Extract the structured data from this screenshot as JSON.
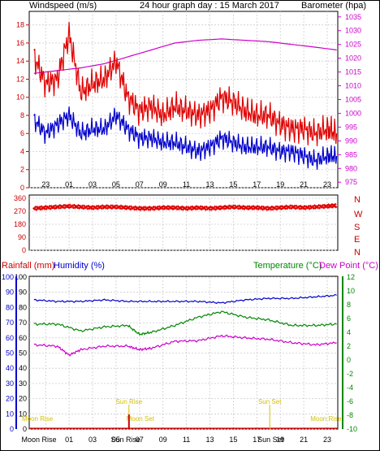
{
  "header": {
    "left_label": "Windspeed (m/s)",
    "title": "24 hour graph day : 15 March 2017",
    "right_label": "Barometer (hpa)"
  },
  "bottom_header": {
    "rainfall_label": "Rainfall (mm)",
    "humidity_label": "Humidity (%)",
    "temperature_label": "Temperature (°C)",
    "dewpoint_label": "Dew Point (°C)"
  },
  "colors": {
    "wind_gust": "#e00000",
    "wind_avg": "#0000cc",
    "barometer": "#cc00cc",
    "direction": "#e00000",
    "humidity": "#0000cc",
    "dewpoint": "#cc00cc",
    "temperature": "#008800",
    "rain_axis": "#0000cc",
    "temp_axis": "#008800",
    "sun": "#d4c000",
    "moon": "#d4c000",
    "rainfall": "#e00000"
  },
  "x_ticks": [
    "23",
    "01",
    "03",
    "05",
    "07",
    "09",
    "11",
    "13",
    "15",
    "17",
    "19",
    "21",
    "23"
  ],
  "chart_data": [
    {
      "type": "line",
      "x_unit": "hour",
      "y_left_label": "Windspeed (m/s)",
      "y_right_label": "Barometer (hpa)",
      "y_left_ticks": [
        "0",
        "2",
        "4",
        "6",
        "8",
        "10",
        "12",
        "14",
        "16",
        "18"
      ],
      "y_right_ticks": [
        "975",
        "980",
        "985",
        "990",
        "995",
        "1000",
        "1005",
        "1010",
        "1015",
        "1020",
        "1025",
        "1030",
        "1035"
      ],
      "ylim_left": [
        0,
        19.5
      ],
      "ylim_right": [
        973,
        1037
      ],
      "series": [
        {
          "name": "Wind gust",
          "axis": "left",
          "x": [
            22,
            23,
            0,
            1,
            2,
            3,
            4,
            5,
            6,
            7,
            8,
            9,
            10,
            11,
            12,
            13,
            14,
            15,
            16,
            17,
            18,
            19,
            20,
            21,
            22,
            23,
            23.8
          ],
          "values": [
            14.5,
            11.5,
            12,
            17,
            10.5,
            11.5,
            12,
            14,
            10,
            8.5,
            9,
            8,
            9,
            8.5,
            8,
            8.5,
            10,
            9.5,
            8.5,
            8,
            8,
            7,
            6.5,
            6.5,
            6,
            6.5,
            6
          ]
        },
        {
          "name": "Wind average",
          "axis": "left",
          "x": [
            22,
            23,
            0,
            1,
            2,
            3,
            4,
            5,
            6,
            7,
            8,
            9,
            10,
            11,
            12,
            13,
            14,
            15,
            16,
            17,
            18,
            19,
            20,
            21,
            22,
            23,
            23.8
          ],
          "values": [
            7.5,
            6,
            7,
            8,
            6,
            6.5,
            6.5,
            8,
            6.5,
            5.5,
            5.5,
            5,
            5,
            4.5,
            4,
            4.5,
            5.5,
            5,
            4.5,
            4.5,
            4.5,
            4,
            4,
            3.5,
            3,
            3.5,
            3.5
          ]
        },
        {
          "name": "Barometer",
          "axis": "right",
          "x": [
            22,
            0,
            2,
            4,
            6,
            8,
            10,
            12,
            14,
            16,
            18,
            20,
            22,
            23.8
          ],
          "values": [
            1014.5,
            1015.5,
            1016.5,
            1018,
            1020.5,
            1023,
            1025.5,
            1026.5,
            1027,
            1026.5,
            1026,
            1025,
            1024,
            1023
          ]
        }
      ]
    },
    {
      "type": "scatter",
      "x_unit": "hour",
      "y_ticks": [
        "0",
        "90",
        "180",
        "270",
        "360"
      ],
      "y_labels_right": [
        "N",
        "W",
        "S",
        "E",
        "N"
      ],
      "ylim": [
        0,
        360
      ],
      "series": [
        {
          "name": "Wind direction",
          "x": [
            22,
            23,
            0,
            1,
            2,
            3,
            4,
            5,
            6,
            7,
            8,
            9,
            10,
            11,
            12,
            13,
            14,
            15,
            16,
            17,
            18,
            19,
            20,
            21,
            22,
            23,
            23.8
          ],
          "values": [
            290,
            295,
            300,
            305,
            300,
            295,
            300,
            300,
            295,
            290,
            290,
            295,
            295,
            290,
            295,
            290,
            295,
            300,
            295,
            295,
            290,
            295,
            300,
            295,
            300,
            305,
            310
          ]
        }
      ]
    },
    {
      "type": "line",
      "x_unit": "hour",
      "y_left_ticks": [
        "0",
        "10",
        "20",
        "30",
        "40",
        "50",
        "60",
        "70",
        "80",
        "90",
        "100"
      ],
      "y_right_ticks": [
        "-10",
        "-8",
        "-6",
        "-4",
        "-2",
        "0",
        "2",
        "4",
        "6",
        "8",
        "10",
        "12"
      ],
      "ylim_left": [
        0,
        100
      ],
      "ylim_right": [
        -10,
        12
      ],
      "series": [
        {
          "name": "Humidity",
          "axis": "left",
          "x": [
            22,
            0,
            2,
            4,
            6,
            8,
            10,
            12,
            14,
            16,
            18,
            20,
            22,
            23.8
          ],
          "values": [
            85,
            84,
            84,
            85,
            84,
            84,
            84,
            84,
            83,
            85,
            86,
            86,
            87,
            88
          ]
        },
        {
          "name": "Temperature",
          "axis": "right",
          "x": [
            22,
            0,
            2,
            4,
            6,
            7,
            8,
            10,
            12,
            14,
            16,
            18,
            20,
            22,
            23.8
          ],
          "values": [
            5.2,
            5.2,
            4.2,
            4.8,
            5,
            3.7,
            4,
            5,
            6.2,
            7,
            6.2,
            5.8,
            5,
            5,
            5.2
          ]
        },
        {
          "name": "Dew Point",
          "axis": "right",
          "x": [
            22,
            0,
            1,
            2,
            4,
            6,
            7,
            8,
            10,
            12,
            14,
            16,
            18,
            20,
            22,
            23.8
          ],
          "values": [
            2.2,
            2,
            0.7,
            1.5,
            2,
            2,
            1.5,
            1.7,
            2.7,
            2.8,
            3.5,
            3.2,
            3,
            2.5,
            2.2,
            2.5
          ]
        },
        {
          "name": "Rainfall",
          "axis": "left",
          "x": [
            22,
            23.8
          ],
          "values": [
            0.5,
            0.5
          ]
        }
      ]
    }
  ],
  "events": {
    "moon_rise_label": "Moon Rise",
    "moon_set_label": "Moon Set",
    "sun_rise_label": "Sun Rise",
    "sun_set_label": "Sun Set",
    "moon_rise_hour_early": 22.3,
    "moon_set_hour": 6.1,
    "sun_rise_hour": 6.1,
    "sun_set_hour": 18.1,
    "moon_rise_hour_late": 23.3
  },
  "bottom_axis_labels": {
    "moon_rise": "Moon Rise",
    "ticks": [
      "01",
      "03",
      "05",
      "07",
      "09",
      "11",
      "13",
      "15",
      "17",
      "19",
      "21",
      "23"
    ],
    "sun_rise": "Sun Rise",
    "sun_set": "Sun Set"
  }
}
